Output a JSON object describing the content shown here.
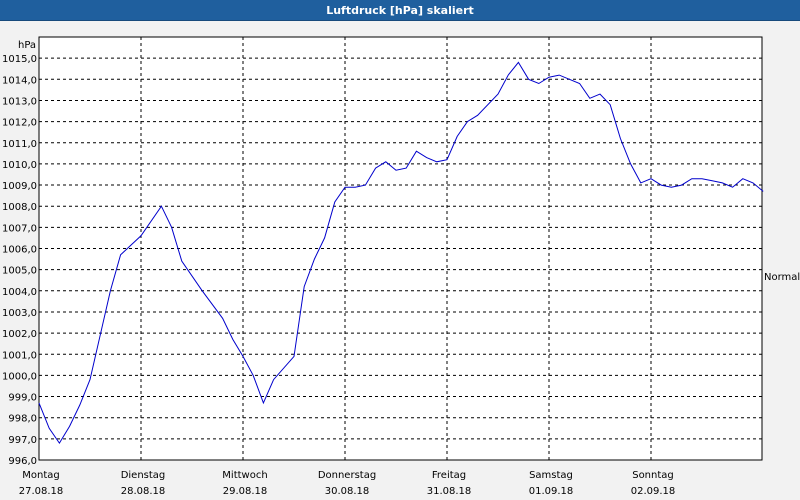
{
  "window": {
    "title": "Luftdruck [hPa] skaliert"
  },
  "chart_data": {
    "type": "line",
    "title": "Luftdruck [hPa] skaliert",
    "ylabel": "hPa",
    "ylim": [
      996.0,
      1016.0
    ],
    "yticks": [
      "996,0",
      "997,0",
      "998,0",
      "999,0",
      "1000,0",
      "1001,0",
      "1002,0",
      "1003,0",
      "1004,0",
      "1005,0",
      "1006,0",
      "1007,0",
      "1008,0",
      "1009,0",
      "1010,0",
      "1011,0",
      "1012,0",
      "1013,0",
      "1014,0",
      "1015,0"
    ],
    "days": [
      {
        "weekday": "Montag",
        "date": "27.08.18"
      },
      {
        "weekday": "Dienstag",
        "date": "28.08.18"
      },
      {
        "weekday": "Mittwoch",
        "date": "29.08.18"
      },
      {
        "weekday": "Donnerstag",
        "date": "30.08.18"
      },
      {
        "weekday": "Freitag",
        "date": "31.08.18"
      },
      {
        "weekday": "Samstag",
        "date": "01.09.18"
      },
      {
        "weekday": "Sonntag",
        "date": "02.09.18"
      }
    ],
    "right_label": "Normal",
    "grid": true,
    "line_color": "#0000cc",
    "series": [
      {
        "x_days": [
          0.0,
          0.1,
          0.2,
          0.3,
          0.4,
          0.5,
          0.6,
          0.7,
          0.8,
          1.0,
          1.2,
          1.3,
          1.4,
          1.6,
          1.8,
          1.9,
          2.0,
          2.1,
          2.2,
          2.3,
          2.5,
          2.6,
          2.7,
          2.8,
          2.9,
          3.0,
          3.1,
          3.2,
          3.3,
          3.4,
          3.5,
          3.6,
          3.7,
          3.8,
          3.9,
          4.0,
          4.1,
          4.2,
          4.3,
          4.5,
          4.6,
          4.7,
          4.8,
          4.9,
          5.0,
          5.1,
          5.2,
          5.3,
          5.4,
          5.5,
          5.6,
          5.7,
          5.8,
          5.9,
          6.0,
          6.1,
          6.2,
          6.3,
          6.4,
          6.5,
          6.6,
          6.7,
          6.8,
          6.9,
          7.0,
          7.1
        ],
        "y": [
          998.7,
          997.5,
          996.8,
          997.6,
          998.6,
          999.8,
          1001.9,
          1004.0,
          1005.7,
          1006.6,
          1008.0,
          1007.0,
          1005.4,
          1004.0,
          1002.7,
          1001.7,
          1000.9,
          1000.0,
          998.7,
          999.8,
          1000.9,
          1004.2,
          1005.5,
          1006.5,
          1008.2,
          1008.9,
          1008.9,
          1009.0,
          1009.8,
          1010.1,
          1009.7,
          1009.8,
          1010.6,
          1010.3,
          1010.1,
          1010.2,
          1011.3,
          1012.0,
          1012.3,
          1013.3,
          1014.2,
          1014.8,
          1014.0,
          1013.8,
          1014.1,
          1014.2,
          1014.0,
          1013.8,
          1013.1,
          1013.3,
          1012.8,
          1011.2,
          1010.0,
          1009.1,
          1009.3,
          1009.0,
          1008.9,
          1009.0,
          1009.3,
          1009.3,
          1009.2,
          1009.1,
          1008.9,
          1009.3,
          1009.1,
          1008.7
        ]
      }
    ]
  }
}
